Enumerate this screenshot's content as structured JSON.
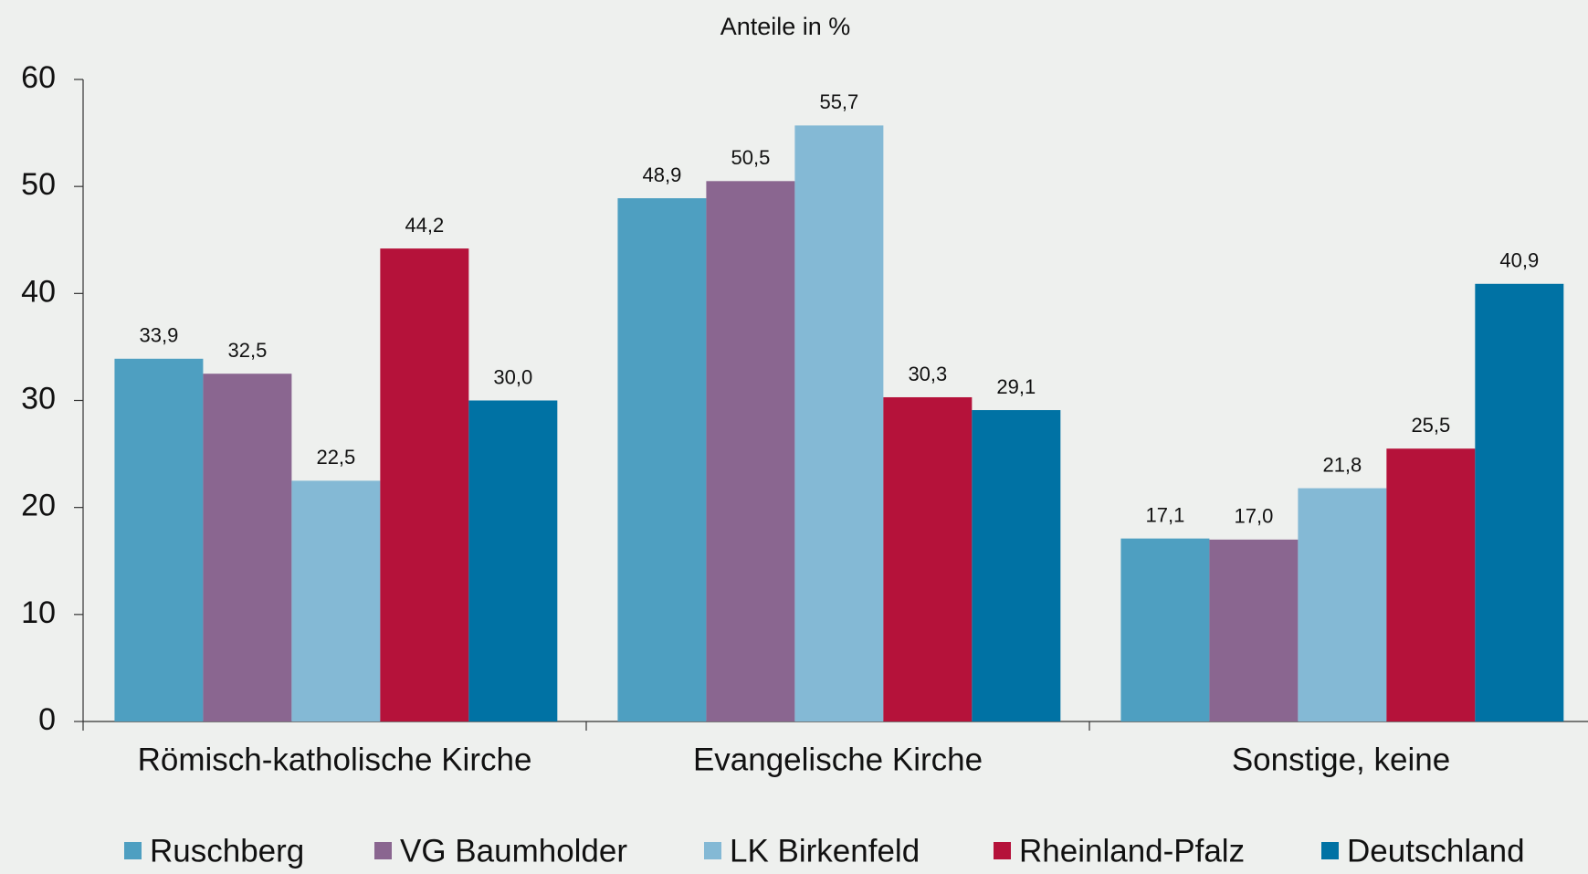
{
  "chart_data": {
    "type": "bar",
    "title": "Anteile in %",
    "categories": [
      "Römisch-katholische Kirche",
      "Evangelische Kirche",
      "Sonstige, keine"
    ],
    "series": [
      {
        "name": "Ruschberg",
        "color": "#4e9fc1",
        "values": [
          33.9,
          48.9,
          17.1
        ],
        "value_labels": [
          "33,9",
          "48,9",
          "17,1"
        ]
      },
      {
        "name": "VG Baumholder",
        "color": "#8a6690",
        "values": [
          32.5,
          50.5,
          17.0
        ],
        "value_labels": [
          "32,5",
          "50,5",
          "17,0"
        ]
      },
      {
        "name": "LK Birkenfeld",
        "color": "#84b9d5",
        "values": [
          22.5,
          55.7,
          21.8
        ],
        "value_labels": [
          "22,5",
          "55,7",
          "21,8"
        ]
      },
      {
        "name": "Rheinland-Pfalz",
        "color": "#b5123a",
        "values": [
          44.2,
          30.3,
          25.5
        ],
        "value_labels": [
          "44,2",
          "30,3",
          "25,5"
        ]
      },
      {
        "name": "Deutschland",
        "color": "#0072a4",
        "values": [
          30.0,
          29.1,
          40.9
        ],
        "value_labels": [
          "30,0",
          "29,1",
          "40,9"
        ]
      }
    ],
    "ylim": [
      0,
      60
    ],
    "yticks": [
      0,
      10,
      20,
      30,
      40,
      50,
      60
    ],
    "grid": false,
    "legend": "bottom"
  }
}
